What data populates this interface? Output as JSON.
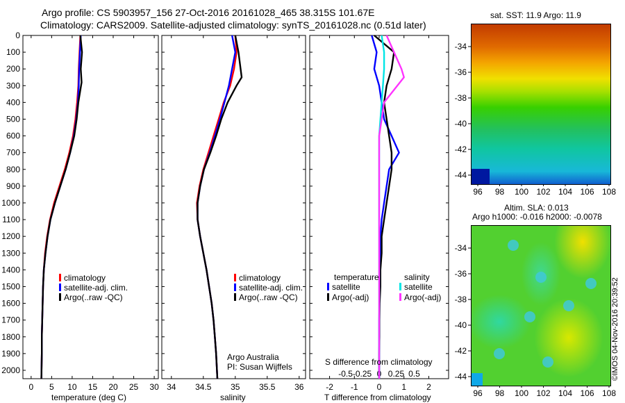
{
  "header": {
    "line1": "Argo profile: CS 5903957_156 27-Oct-2016 20161028_465 38.315S 101.67E",
    "line2": "Climatology: CARS2009. Satellite-adjusted climatology: synTS_20161028.nc (0.51d later)"
  },
  "colors": {
    "climatology": "#ff0000",
    "satellite_adj": "#0000ff",
    "argo": "#000000",
    "satellite_sal": "#00e5e5",
    "argo_sal": "#ff33ff"
  },
  "temperature_panel": {
    "xlabel": "temperature (deg C)",
    "legend": [
      "climatology",
      "satellite-adj. clim.",
      "Argo(..raw -QC)"
    ]
  },
  "salinity_panel": {
    "xlabel": "salinity",
    "legend": [
      "climatology",
      "satellite-adj. clim.",
      "Argo(..raw -QC)"
    ],
    "credit1": "Argo Australia",
    "credit2": "PI: Susan Wijffels"
  },
  "difference_panel": {
    "xlabel": "T difference from climatology",
    "top_xlabel": "S difference from climatology",
    "legend_temp_title": "temperature",
    "legend_sal_title": "salinity",
    "legend_temp": [
      "satellite",
      "Argo(-adj)"
    ],
    "legend_sal": [
      "satellite",
      "Argo(-adj)"
    ]
  },
  "sst_map": {
    "title": "sat. SST: 11.9 Argo: 11.9",
    "yticks": [
      "-34",
      "-36",
      "-38",
      "-40",
      "-42",
      "-44"
    ],
    "xticks": [
      "96",
      "98",
      "100",
      "102",
      "104",
      "106",
      "108"
    ]
  },
  "sla_map": {
    "title1": "Altim. SLA: 0.013",
    "title2": "Argo h1000: -0.016 h2000: -0.0078",
    "yticks": [
      "-34",
      "-36",
      "-38",
      "-40",
      "-42",
      "-44"
    ],
    "xticks": [
      "96",
      "98",
      "100",
      "102",
      "104",
      "106",
      "108"
    ]
  },
  "footer": {
    "stamp": "©IMOS 04-Nov-2016 20:39:52"
  },
  "chart_data": [
    {
      "type": "line",
      "panel": "temperature",
      "xlabel": "temperature (deg C)",
      "ylim": [
        2050,
        0
      ],
      "xlim": [
        -2,
        31
      ],
      "yticks": [
        0,
        100,
        200,
        300,
        400,
        500,
        600,
        700,
        800,
        900,
        1000,
        1100,
        1200,
        1300,
        1400,
        1500,
        1600,
        1700,
        1800,
        1900,
        2000
      ],
      "xticks": [
        0,
        5,
        10,
        15,
        20,
        25,
        30
      ],
      "series": [
        {
          "name": "climatology",
          "x": [
            12,
            11.8,
            11.6,
            11.5,
            11.2,
            10.8,
            10.2,
            9.3,
            8.2,
            6.9,
            5.6,
            4.6,
            3.9,
            3.4,
            3.1,
            2.9,
            2.8,
            2.7,
            2.6,
            2.6,
            2.5
          ],
          "y": [
            0,
            100,
            200,
            300,
            400,
            500,
            600,
            700,
            800,
            900,
            1000,
            1100,
            1200,
            1300,
            1400,
            1500,
            1600,
            1700,
            1800,
            1900,
            2050
          ]
        },
        {
          "name": "satellite-adj. clim.",
          "x": [
            12.1,
            11.9,
            11.7,
            11.6,
            11.4,
            11.0,
            10.4,
            9.5,
            8.4,
            7.1,
            5.8,
            4.7,
            4.0,
            3.5,
            3.1,
            2.9,
            2.8,
            2.7,
            2.6,
            2.6,
            2.5
          ],
          "y": [
            0,
            100,
            200,
            300,
            400,
            500,
            600,
            700,
            800,
            900,
            1000,
            1100,
            1200,
            1300,
            1400,
            1500,
            1600,
            1700,
            1800,
            1900,
            2050
          ]
        },
        {
          "name": "Argo(..raw -QC)",
          "x": [
            12,
            12.4,
            12.1,
            12.3,
            11.5,
            11.1,
            10.5,
            9.5,
            8.4,
            7.1,
            5.8,
            4.7,
            4.0,
            3.5,
            3.1,
            2.9,
            2.8,
            2.7,
            2.6,
            2.6,
            2.5
          ],
          "y": [
            0,
            100,
            200,
            280,
            400,
            500,
            600,
            700,
            800,
            900,
            1000,
            1100,
            1200,
            1300,
            1400,
            1500,
            1600,
            1700,
            1800,
            1900,
            2050
          ]
        }
      ]
    },
    {
      "type": "line",
      "panel": "salinity",
      "xlabel": "salinity",
      "ylim": [
        2050,
        0
      ],
      "xlim": [
        33.85,
        36.1
      ],
      "xticks": [
        34,
        34.5,
        35,
        35.5,
        36
      ],
      "series": [
        {
          "name": "climatology",
          "x": [
            35.0,
            35.02,
            34.98,
            34.92,
            34.82,
            34.74,
            34.66,
            34.58,
            34.5,
            34.44,
            34.4,
            34.41,
            34.45,
            34.5,
            34.55,
            34.59,
            34.63,
            34.66,
            34.68,
            34.7,
            34.72
          ],
          "y": [
            0,
            100,
            200,
            300,
            400,
            500,
            600,
            700,
            800,
            900,
            1000,
            1100,
            1200,
            1300,
            1400,
            1500,
            1600,
            1700,
            1800,
            1900,
            2050
          ]
        },
        {
          "name": "satellite-adj. clim.",
          "x": [
            34.95,
            35.0,
            34.95,
            34.9,
            34.83,
            34.76,
            34.68,
            34.6,
            34.51,
            34.45,
            34.41,
            34.41,
            34.45,
            34.5,
            34.55,
            34.59,
            34.63,
            34.66,
            34.68,
            34.7,
            34.72
          ],
          "y": [
            0,
            100,
            200,
            300,
            400,
            500,
            600,
            700,
            800,
            900,
            1000,
            1100,
            1200,
            1300,
            1400,
            1500,
            1600,
            1700,
            1800,
            1900,
            2050
          ]
        },
        {
          "name": "Argo(..raw -QC)",
          "x": [
            35.0,
            35.05,
            35.1,
            35.02,
            34.88,
            34.78,
            34.7,
            34.61,
            34.51,
            34.45,
            34.41,
            34.41,
            34.45,
            34.5,
            34.55,
            34.59,
            34.63,
            34.66,
            34.68,
            34.7,
            34.72
          ],
          "y": [
            0,
            100,
            250,
            300,
            400,
            500,
            600,
            700,
            800,
            900,
            1000,
            1100,
            1200,
            1300,
            1400,
            1500,
            1600,
            1700,
            1800,
            1900,
            2050
          ]
        }
      ]
    },
    {
      "type": "line",
      "panel": "difference",
      "xlabel": "T difference from climatology",
      "top_xlabel": "S difference from climatology",
      "ylim": [
        2050,
        0
      ],
      "xlim": [
        -2.8,
        2.8
      ],
      "xticks": [
        -2,
        -1,
        0,
        1,
        2
      ],
      "top_xticks": [
        "-0.5",
        "-0.25",
        "0",
        "0.25",
        "0.5"
      ],
      "series": [
        {
          "name": "temperature satellite",
          "x": [
            -0.3,
            -0.1,
            -0.2,
            0.0,
            0.1,
            0.2,
            0.5,
            0.8,
            0.4,
            0.3,
            0.2,
            0.1,
            0.05,
            0.05,
            0.03,
            0.02,
            0.01,
            0.0,
            0.0,
            0.0,
            0.0
          ],
          "y": [
            0,
            100,
            200,
            300,
            400,
            500,
            600,
            700,
            800,
            900,
            1000,
            1100,
            1200,
            1300,
            1400,
            1500,
            1600,
            1700,
            1800,
            1900,
            2050
          ]
        },
        {
          "name": "temperature Argo(-adj)",
          "x": [
            -0.2,
            0.6,
            0.5,
            0.3,
            0.2,
            0.3,
            0.4,
            0.5,
            0.5,
            0.4,
            0.3,
            0.2,
            0.1,
            0.1,
            0.05,
            0.05,
            0.02,
            0.01,
            0.01,
            0.0,
            0.0
          ],
          "y": [
            0,
            100,
            200,
            300,
            400,
            500,
            600,
            700,
            800,
            900,
            1000,
            1100,
            1200,
            1300,
            1400,
            1500,
            1600,
            1700,
            1800,
            1900,
            2050
          ]
        },
        {
          "name": "salinity satellite",
          "x": [
            0.1,
            0.2,
            0.2,
            0.15,
            0.1,
            0.05,
            0.0,
            0.0,
            0.0,
            0.0,
            0.0,
            0.0,
            0.0,
            0.0,
            0.0,
            0.0,
            0.0,
            0.0,
            0.0,
            0.0,
            0.0
          ],
          "y": [
            0,
            100,
            200,
            300,
            400,
            500,
            600,
            700,
            800,
            900,
            1000,
            1100,
            1200,
            1300,
            1400,
            1500,
            1600,
            1700,
            1800,
            1900,
            2050
          ]
        },
        {
          "name": "salinity Argo(-adj)",
          "x": [
            0.3,
            0.6,
            0.9,
            1.0,
            0.2,
            0.1,
            0.0,
            0.0,
            0.0,
            0.0,
            0.0,
            0.0,
            0.0,
            0.0,
            0.0,
            0.0,
            0.0,
            0.0,
            0.0,
            0.0,
            0.0
          ],
          "y": [
            0,
            100,
            200,
            250,
            400,
            500,
            600,
            700,
            800,
            900,
            1000,
            1100,
            1200,
            1300,
            1400,
            1500,
            1600,
            1700,
            1800,
            1900,
            2050
          ]
        }
      ]
    }
  ]
}
